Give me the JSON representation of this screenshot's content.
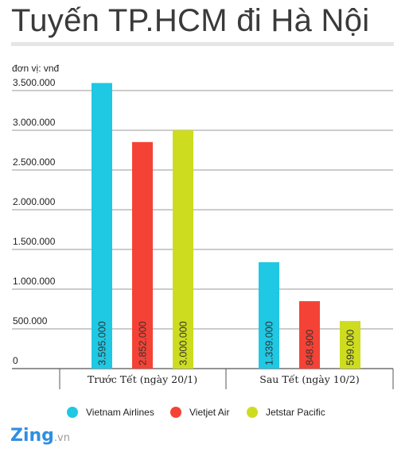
{
  "chart_data": {
    "type": "bar",
    "title": "Tuyến TP.HCM đi Hà Nội",
    "unit_label": "đơn vị: vnđ",
    "categories": [
      "Trước Tết (ngày 20/1)",
      "Sau Tết (ngày 10/2)"
    ],
    "series": [
      {
        "name": "Vietnam Airlines",
        "color": "#1fc8e3",
        "values": [
          3595000,
          1339000
        ],
        "labels": [
          "3.595.000",
          "1.339.000"
        ]
      },
      {
        "name": "Vietjet Air",
        "color": "#f44336",
        "values": [
          2852000,
          848900
        ],
        "labels": [
          "2.852.000",
          "848.900"
        ]
      },
      {
        "name": "Jetstar Pacific",
        "color": "#cddc1f",
        "values": [
          3000000,
          599000
        ],
        "labels": [
          "3.000.000",
          "599.000"
        ]
      }
    ],
    "y_ticks": [
      0,
      500000,
      1000000,
      1500000,
      2000000,
      2500000,
      3000000,
      3500000
    ],
    "y_tick_labels": [
      "0",
      "500.000",
      "1.000.000",
      "1.500.000",
      "2.000.000",
      "2.500.000",
      "3.000.000",
      "3.500.000"
    ],
    "ylim": [
      0,
      3500000
    ],
    "grid": true,
    "legend_position": "bottom"
  },
  "logo": {
    "main": "Zing",
    "suffix": ".vn"
  }
}
